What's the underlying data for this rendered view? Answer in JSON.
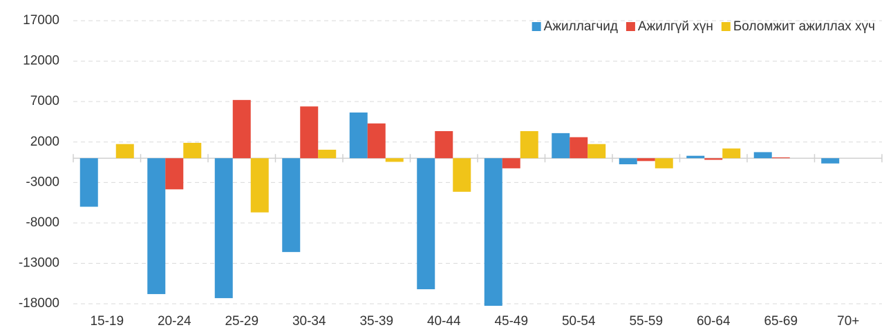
{
  "chart_data": {
    "type": "bar",
    "categories": [
      "15-19",
      "20-24",
      "25-29",
      "30-34",
      "35-39",
      "40-44",
      "45-49",
      "50-54",
      "55-59",
      "60-64",
      "65-69",
      "70+"
    ],
    "series": [
      {
        "name": "Ажиллагчид",
        "color": "#3a97d4",
        "values": [
          -6000,
          -16800,
          -17300,
          -11600,
          5650,
          -16200,
          -18250,
          3100,
          -750,
          300,
          750,
          -650
        ]
      },
      {
        "name": "Ажилгүй хүн",
        "color": "#e64a3b",
        "values": [
          0,
          -3850,
          7200,
          6400,
          4300,
          3350,
          -1250,
          2600,
          -350,
          -200,
          100,
          0
        ]
      },
      {
        "name": "Боломжит ажиллах хүч",
        "color": "#f0c419",
        "values": [
          1750,
          1900,
          -6700,
          1050,
          -450,
          -4150,
          3350,
          1750,
          -1250,
          1200,
          0,
          0
        ]
      }
    ],
    "ylim": [
      -18500,
      17000
    ],
    "yticks": [
      -18000,
      -13000,
      -8000,
      -3000,
      2000,
      7000,
      12000,
      17000
    ],
    "grid": true,
    "legend": "top-right"
  }
}
